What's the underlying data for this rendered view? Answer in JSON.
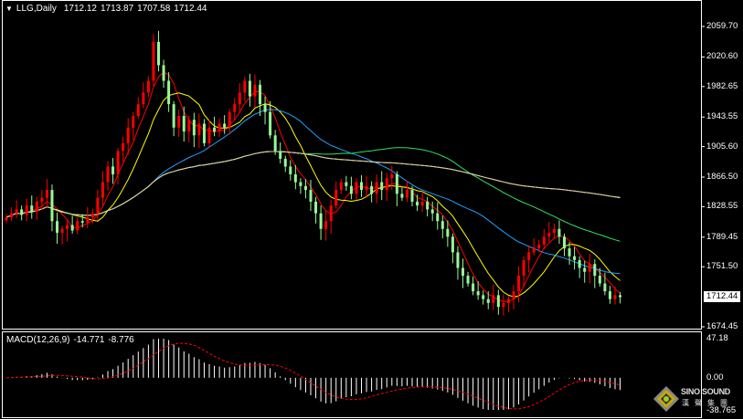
{
  "header": {
    "symbol": "LLG,Daily",
    "open": "1712.12",
    "high": "1713.87",
    "low": "1707.58",
    "close": "1712.44"
  },
  "price_axis": {
    "labels": [
      "2059.70",
      "2020.60",
      "1982.65",
      "1943.55",
      "1905.60",
      "1866.50",
      "1828.55",
      "1789.45",
      "1751.50",
      "1674.45"
    ],
    "current": "1712.44"
  },
  "macd": {
    "title": "MACD(12,26,9)",
    "main_value": "-14.771",
    "signal_value": "-8.776",
    "axis_labels": [
      "47.18",
      "0.00",
      "-38.765"
    ]
  },
  "logo": {
    "en": "SINO SOUND",
    "cn": "漢聲集團"
  },
  "colors": {
    "up": "#ff0000",
    "down": "#98f898",
    "ma5": "#ff0000",
    "ma10": "#ffff00",
    "ma30": "#1ea0ff",
    "ma60": "#30e060",
    "ma120": "#ffffff",
    "ma200": "#d8c890",
    "signal": "#ff0000",
    "hist": "#ffffff"
  },
  "chart_data": {
    "type": "candlestick",
    "title": "LLG,Daily",
    "ylim": [
      1674.45,
      2059.7
    ],
    "macd_ylim": [
      -38.765,
      47.18
    ],
    "closes": [
      1815,
      1820,
      1825,
      1818,
      1830,
      1822,
      1835,
      1840,
      1850,
      1810,
      1795,
      1800,
      1805,
      1798,
      1810,
      1808,
      1815,
      1820,
      1840,
      1860,
      1880,
      1870,
      1900,
      1910,
      1930,
      1945,
      1960,
      1975,
      1990,
      2040,
      2010,
      1990,
      1960,
      1930,
      1945,
      1925,
      1940,
      1920,
      1935,
      1910,
      1930,
      1925,
      1935,
      1930,
      1950,
      1960,
      1975,
      1990,
      1970,
      1985,
      1960,
      1950,
      1920,
      1900,
      1890,
      1880,
      1870,
      1860,
      1855,
      1850,
      1835,
      1820,
      1800,
      1810,
      1830,
      1850,
      1860,
      1855,
      1845,
      1860,
      1850,
      1855,
      1845,
      1860,
      1850,
      1865,
      1870,
      1845,
      1840,
      1850,
      1835,
      1830,
      1835,
      1825,
      1820,
      1810,
      1800,
      1790,
      1770,
      1750,
      1740,
      1730,
      1720,
      1715,
      1710,
      1705,
      1715,
      1700,
      1705,
      1710,
      1720,
      1740,
      1760,
      1770,
      1775,
      1780,
      1790,
      1795,
      1800,
      1790,
      1775,
      1765,
      1760,
      1750,
      1745,
      1755,
      1740,
      1730,
      1720,
      1710,
      1715,
      1712.44
    ],
    "moving_averages": [
      5,
      10,
      30,
      60,
      120,
      200
    ]
  }
}
